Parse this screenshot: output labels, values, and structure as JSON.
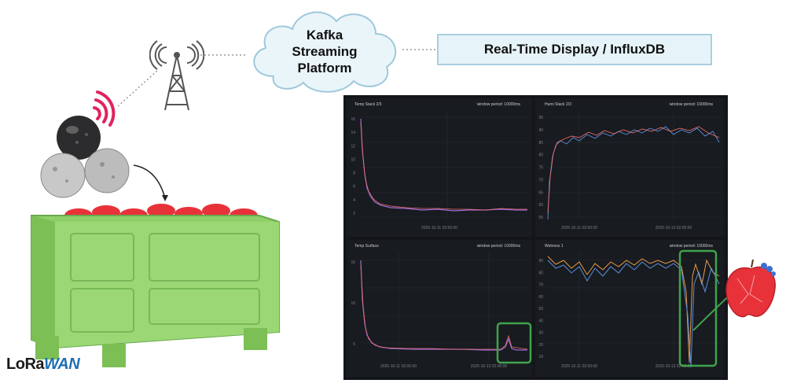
{
  "cloud": {
    "line1": "Kafka",
    "line2": "Streaming",
    "line3": "Platform"
  },
  "display_box": {
    "label": "Real-Time Display / InfluxDB"
  },
  "logo": {
    "text_lo": "Lo",
    "text_ra": "Ra",
    "text_wan": "WAN"
  },
  "dashboard": {
    "panels": [
      {
        "title": "Temp Stack 2/3",
        "period": "window period: 10000ms",
        "xtick": "2025-10-11 02:00:00",
        "yticks": [
          "16",
          "14",
          "12",
          "10",
          "8",
          "6",
          "4",
          "2"
        ]
      },
      {
        "title": "Humi Stack 2/3",
        "period": "window period: 10000ms",
        "xtick1": "2025-10-11 02:00:00",
        "xtick2": "2025-10-13 02:00:00",
        "yticks": [
          "95",
          "90",
          "85",
          "80",
          "75",
          "70",
          "65",
          "60",
          "55"
        ]
      },
      {
        "title": "Temp Surface",
        "period": "window period: 10000ms",
        "xtick1": "2025-10-11 02:00:00",
        "xtick2": "2025-10-13 02:00:00",
        "yticks": [
          "15",
          "10",
          "5"
        ]
      },
      {
        "title": "Wetness 1",
        "period": "window period: 10000ms",
        "xtick1": "2025-10-11 02:00:00",
        "xtick2": "2025-10-13 02:00:00",
        "yticks": [
          "90",
          "80",
          "70",
          "60",
          "50",
          "40",
          "30",
          "20",
          "10"
        ]
      }
    ]
  },
  "colors": {
    "highlight": "#3fa34d",
    "crate": "#8fcf6a",
    "apple": "#e8323a",
    "signal": "#e0245e",
    "lines": [
      "#a06ad8",
      "#e36b6b",
      "#5a8fe0",
      "#e89a4a"
    ]
  }
}
